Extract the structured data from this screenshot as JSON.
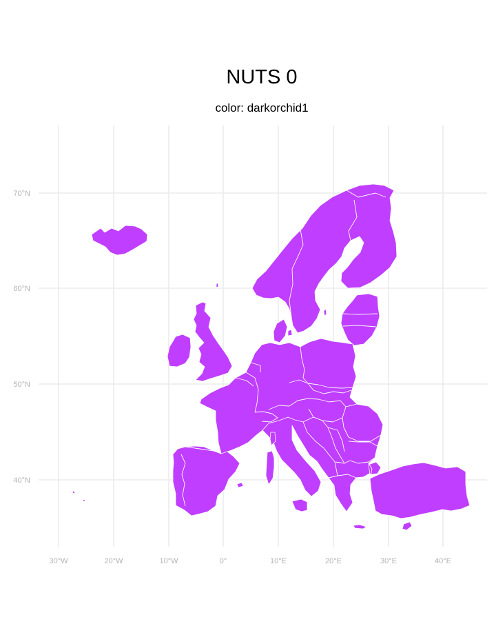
{
  "title": "NUTS 0",
  "subtitle": "color: darkorchid1",
  "fill_color": "#BF3EFF",
  "grid_color": "#EBEBEB",
  "tick_color": "#B3B3B3",
  "axes": {
    "lon_ticks": [
      "30°W",
      "20°W",
      "10°W",
      "0°",
      "10°E",
      "20°E",
      "30°E",
      "40°E"
    ],
    "lat_ticks": [
      "70°N",
      "60°N",
      "50°N",
      "40°N"
    ]
  }
}
